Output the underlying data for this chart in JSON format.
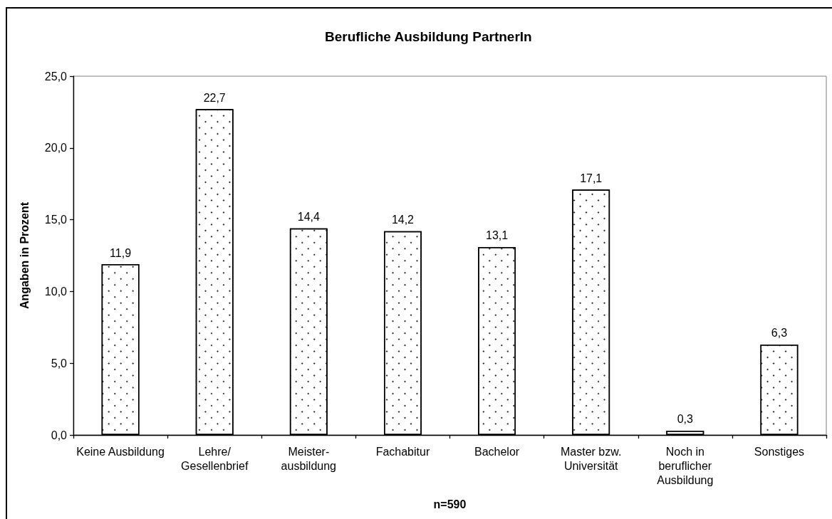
{
  "chart_data": {
    "type": "bar",
    "title": "Berufliche Ausbildung PartnerIn",
    "xlabel": "n=590",
    "ylabel": "Angaben in Prozent",
    "categories": [
      "Keine Ausbildung",
      "Lehre/\nGesellenbrief",
      "Meister-\nausbildung",
      "Fachabitur",
      "Bachelor",
      "Master bzw.\nUniversität",
      "Noch in\nberuflicher\nAusbildung",
      "Sonstiges"
    ],
    "values": [
      11.9,
      22.7,
      14.4,
      14.2,
      13.1,
      17.1,
      0.3,
      6.3
    ],
    "value_labels": [
      "11,9",
      "22,7",
      "14,4",
      "14,2",
      "13,1",
      "17,1",
      "0,3",
      "6,3"
    ],
    "color": "#ffffff",
    "ylim": [
      0,
      25
    ],
    "yticks": [
      {
        "value": 0,
        "label": "0,0"
      },
      {
        "value": 5,
        "label": "5,0"
      },
      {
        "value": 10,
        "label": "10,0"
      },
      {
        "value": 15,
        "label": "15,0"
      },
      {
        "value": 20,
        "label": "20,0"
      },
      {
        "value": 25,
        "label": "25,0"
      }
    ],
    "grid": false
  }
}
